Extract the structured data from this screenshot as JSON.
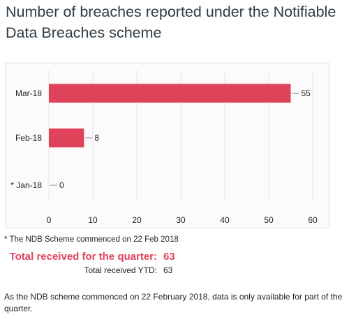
{
  "page": {
    "title": "Number of breaches reported under the Notifiable Data Breaches scheme",
    "footnote": "* The NDB Scheme commenced on 22 Feb 2018",
    "total_quarter_label": "Total received for the quarter:",
    "total_quarter_value": "63",
    "total_ytd_label": "Total received YTD:",
    "total_ytd_value": "63",
    "note": "As the NDB scheme commenced on 22 February 2018, data is only available for part of the quarter."
  },
  "chart_data": {
    "type": "bar",
    "orientation": "horizontal",
    "title": "Number of breaches reported under the Notifiable Data Breaches scheme",
    "categories": [
      "Mar-18",
      "Feb-18",
      "* Jan-18"
    ],
    "values": [
      55,
      8,
      0
    ],
    "xlim": [
      0,
      60
    ],
    "x_ticks": [
      0,
      10,
      20,
      30,
      40,
      50,
      60
    ],
    "grid": true,
    "bar_color": "#e0425a",
    "grid_color": "#e6e6e6"
  }
}
